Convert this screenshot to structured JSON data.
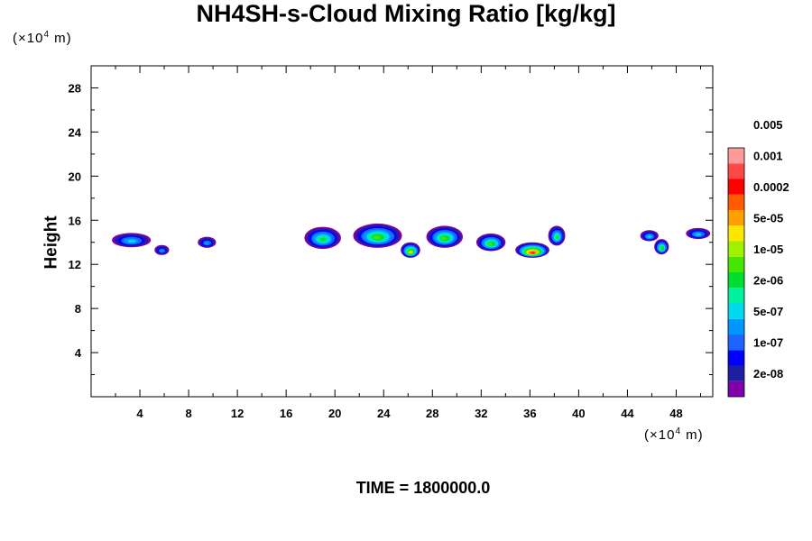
{
  "chart_data": {
    "type": "heatmap",
    "title": "NH4SH-s-Cloud Mixing Ratio [kg/kg]",
    "ylabel": "Height",
    "xlabel": "",
    "y_unit": {
      "prefix": "(×10",
      "exp": "4",
      "suffix": " m)"
    },
    "x_unit": {
      "prefix": "(×10",
      "exp": "4",
      "suffix": " m)"
    },
    "footer": "TIME = 1800000.0",
    "xlim": [
      0,
      51
    ],
    "ylim": [
      0,
      30
    ],
    "x_ticks": [
      "4",
      "8",
      "12",
      "16",
      "20",
      "24",
      "28",
      "32",
      "36",
      "40",
      "44",
      "48"
    ],
    "y_ticks": [
      "4",
      "8",
      "12",
      "16",
      "20",
      "24",
      "28"
    ],
    "colorbar": {
      "colors": [
        "#7f00a8",
        "#1e1ea0",
        "#0000ff",
        "#1e64ff",
        "#0096ff",
        "#00d8f0",
        "#00f0a0",
        "#00dc32",
        "#46e600",
        "#a0f000",
        "#ffe600",
        "#ffa000",
        "#ff5a00",
        "#ff0000",
        "#ff4848",
        "#ff9a9a"
      ],
      "labels": [
        "2e-08",
        "1e-07",
        "5e-07",
        "2e-06",
        "1e-05",
        "5e-05",
        "0.0002",
        "0.001",
        "0.005"
      ]
    },
    "clouds": [
      {
        "x": 3.3,
        "y": 14.2,
        "w": 3.2,
        "h": 1.3,
        "peak": 5
      },
      {
        "x": 5.8,
        "y": 13.3,
        "w": 1.2,
        "h": 0.9,
        "peak": 4
      },
      {
        "x": 9.5,
        "y": 14.0,
        "w": 1.5,
        "h": 1.0,
        "peak": 4
      },
      {
        "x": 19.0,
        "y": 14.4,
        "w": 3.0,
        "h": 2.0,
        "peak": 7
      },
      {
        "x": 23.5,
        "y": 14.6,
        "w": 4.0,
        "h": 2.2,
        "peak": 8
      },
      {
        "x": 26.2,
        "y": 13.3,
        "w": 1.6,
        "h": 1.4,
        "peak": 10
      },
      {
        "x": 29.0,
        "y": 14.5,
        "w": 3.0,
        "h": 2.0,
        "peak": 8
      },
      {
        "x": 32.8,
        "y": 14.0,
        "w": 2.4,
        "h": 1.6,
        "peak": 8
      },
      {
        "x": 36.2,
        "y": 13.3,
        "w": 2.8,
        "h": 1.4,
        "peak": 13
      },
      {
        "x": 38.2,
        "y": 14.6,
        "w": 1.4,
        "h": 1.8,
        "peak": 7
      },
      {
        "x": 45.8,
        "y": 14.6,
        "w": 1.5,
        "h": 1.0,
        "peak": 5
      },
      {
        "x": 46.8,
        "y": 13.6,
        "w": 1.2,
        "h": 1.4,
        "peak": 8
      },
      {
        "x": 49.8,
        "y": 14.8,
        "w": 2.0,
        "h": 1.0,
        "peak": 5
      }
    ]
  }
}
